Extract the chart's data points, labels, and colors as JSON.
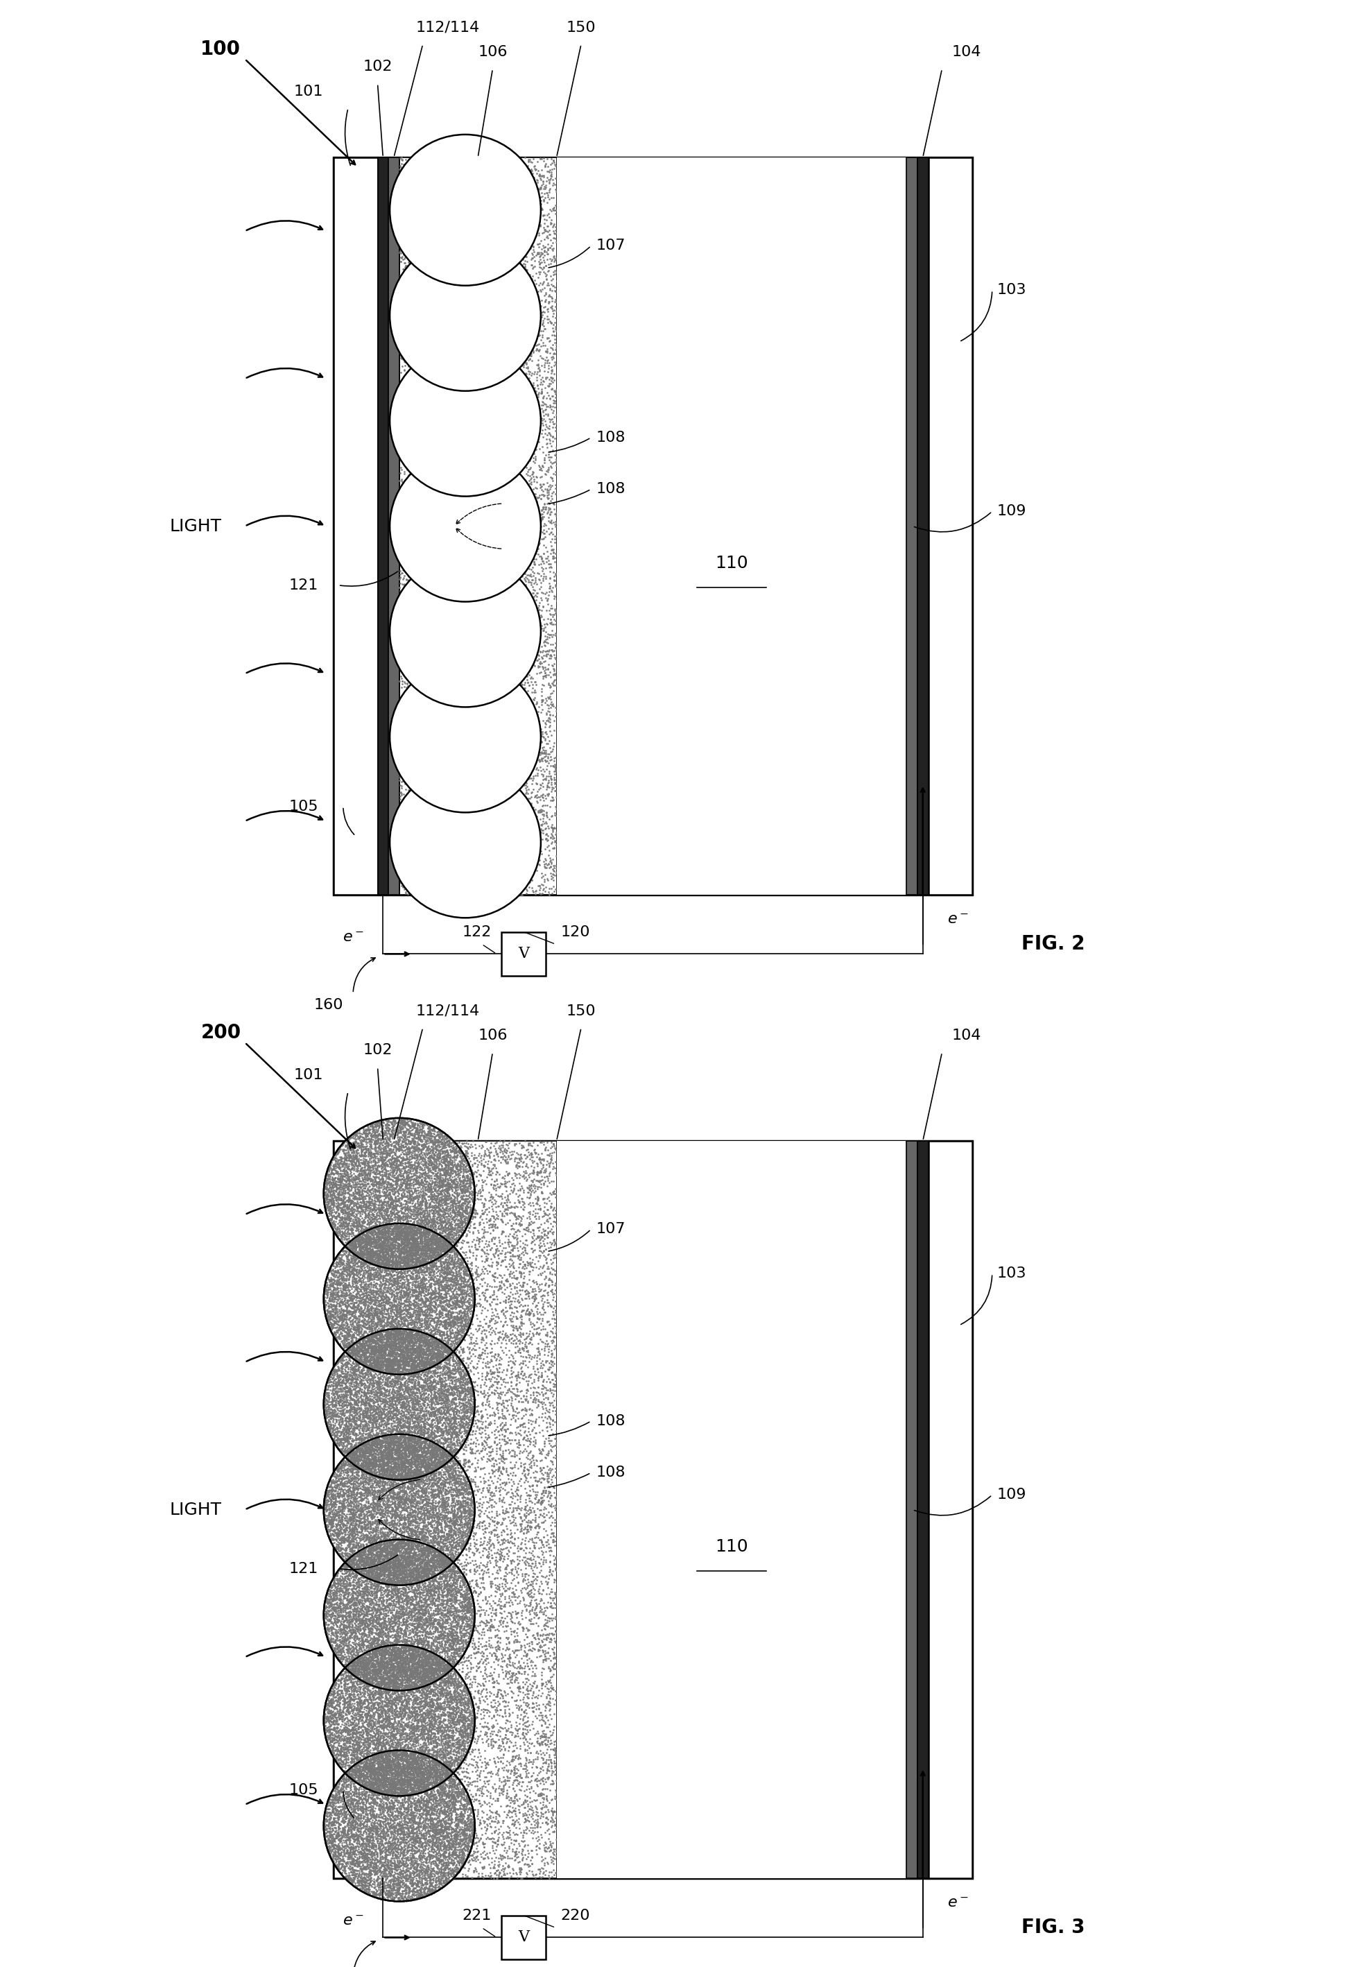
{
  "fig_width": 19.54,
  "fig_height": 28.36,
  "bg_color": "#ffffff",
  "fig2_title": "100",
  "fig3_title": "200",
  "fig2_caption": "FIG. 2",
  "fig3_caption": "FIG. 3",
  "stipple_color": "#aaaaaa",
  "lw_thick": 2.5,
  "lw_medium": 1.8,
  "lw_thin": 1.2,
  "label_fontsize": 16,
  "caption_fontsize": 20,
  "title_fontsize": 20,
  "elec_color": "#222222",
  "elec2_color": "#666666"
}
